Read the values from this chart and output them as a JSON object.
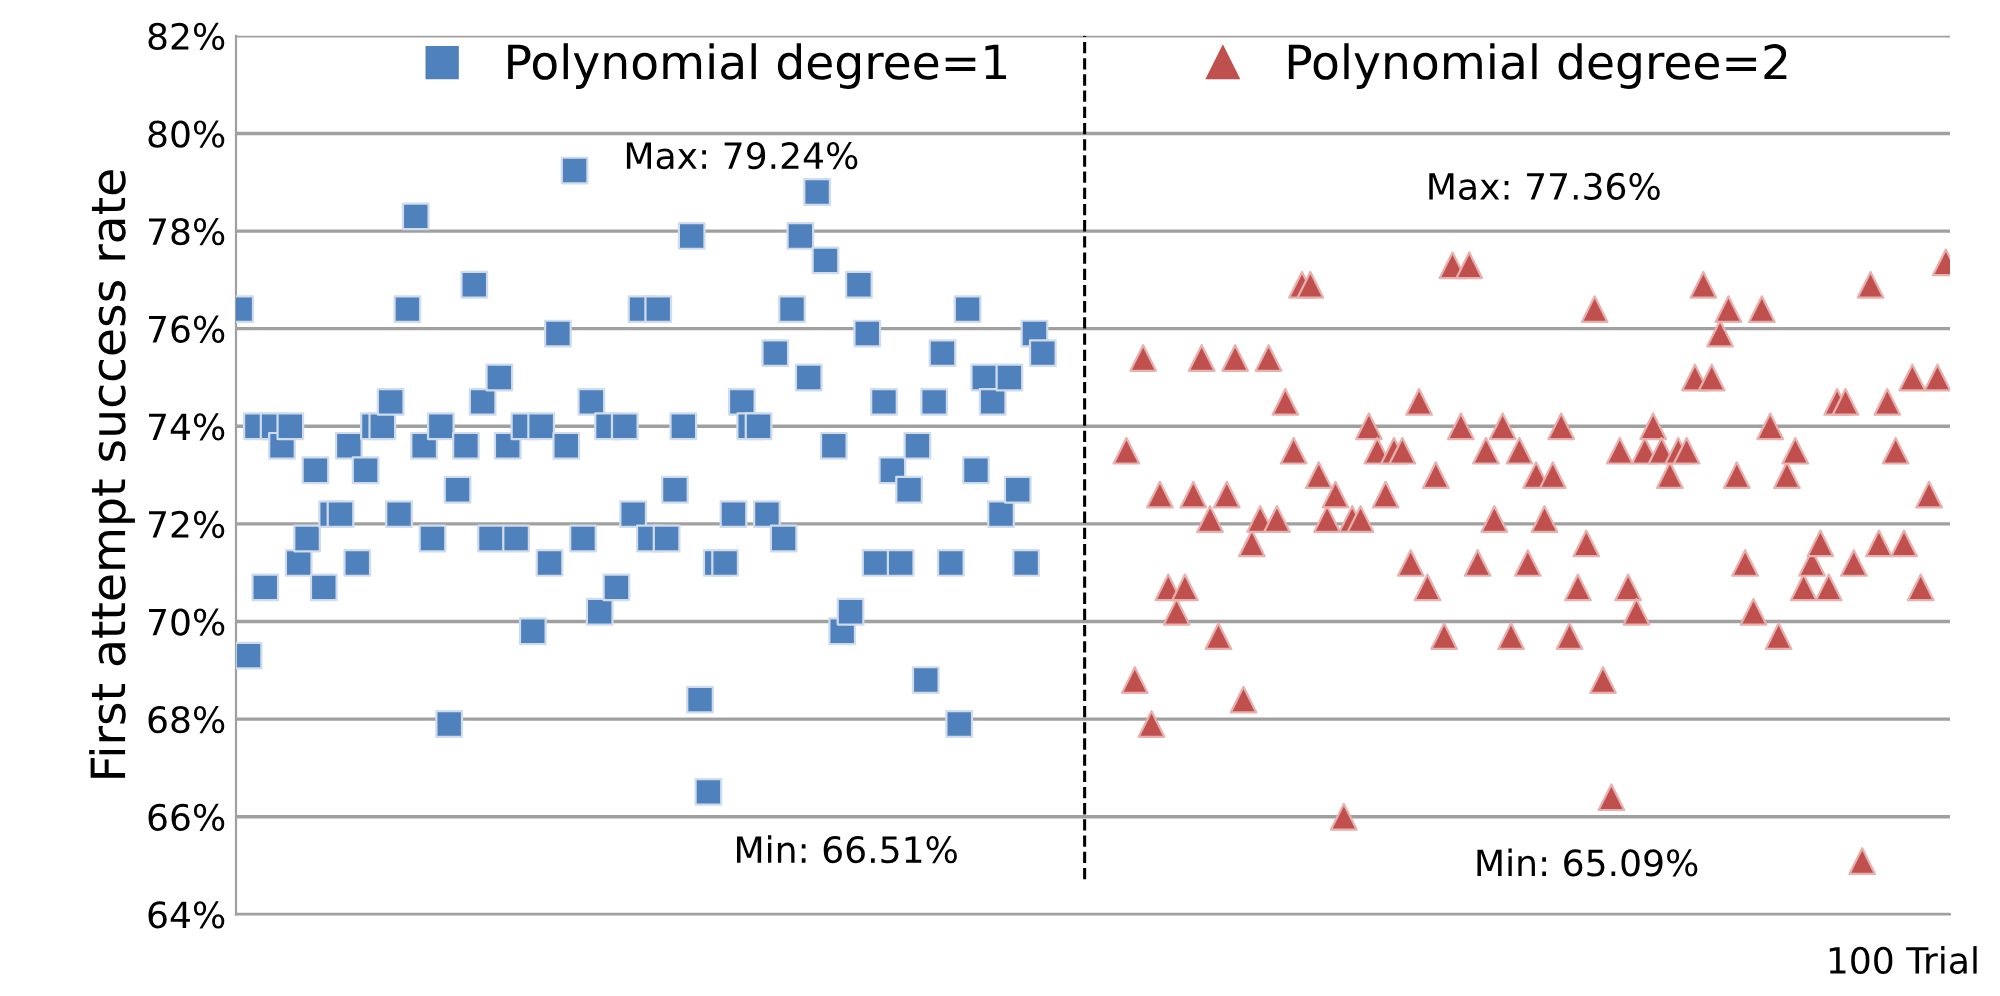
{
  "chart_data": {
    "type": "scatter",
    "ylabel": "First attempt success rate",
    "xlabel": "100 Trial",
    "categories": [
      null,
      null,
      null,
      null,
      null,
      null,
      null,
      null,
      null,
      null,
      null,
      null,
      null,
      null,
      null,
      null,
      null,
      null,
      null,
      null,
      null,
      null,
      null,
      null,
      null,
      null,
      null,
      null,
      null,
      null,
      null,
      null,
      null,
      null,
      null,
      null,
      null,
      null,
      null,
      null,
      null,
      null,
      null,
      null,
      null,
      null,
      null,
      null,
      null,
      null,
      null,
      null,
      null,
      null,
      null,
      null,
      null,
      null,
      null,
      null,
      null,
      null,
      null,
      null,
      null,
      null,
      null,
      null,
      null,
      null,
      null,
      null,
      null,
      null,
      null,
      null,
      null,
      null,
      null,
      null,
      null,
      null,
      null,
      null,
      null,
      null,
      null,
      null,
      null,
      null,
      null,
      null,
      null,
      null,
      null,
      null,
      null,
      null,
      null,
      null,
      null,
      null,
      null,
      null,
      null,
      null,
      null,
      null,
      null,
      null,
      null,
      null,
      null,
      null,
      null,
      null,
      null,
      null,
      null,
      null,
      null,
      null,
      null,
      null,
      null,
      null,
      null,
      null,
      null,
      null,
      null,
      null,
      null,
      null,
      null,
      null,
      null,
      null,
      null,
      null,
      null,
      null,
      null,
      null,
      null,
      null,
      null,
      null,
      null,
      null,
      null,
      null,
      null,
      null,
      null,
      null,
      null,
      null,
      null,
      null,
      null,
      null,
      null,
      null,
      null,
      null,
      null,
      null,
      null,
      null,
      null,
      null,
      null,
      null,
      null,
      null,
      null,
      null,
      null,
      null,
      null,
      null,
      null,
      null,
      null,
      null,
      null,
      null,
      null,
      null,
      null,
      null,
      null,
      null,
      null,
      null,
      null,
      null,
      null,
      null,
      null,
      null,
      null,
      null,
      null
    ],
    "series": [
      {
        "name": "Polynomial degree=1",
        "color": "#4f81bd",
        "marker": "square",
        "values": [
          76.4,
          69.3,
          74.0,
          70.7,
          74.0,
          73.6,
          74.0,
          71.2,
          71.7,
          73.1,
          70.7,
          72.2,
          72.2,
          73.6,
          71.2,
          73.1,
          74.0,
          74.0,
          74.5,
          72.2,
          76.4,
          78.3,
          73.6,
          71.7,
          74.0,
          67.9,
          72.7,
          73.6,
          76.9,
          74.5,
          71.7,
          75.0,
          73.6,
          71.7,
          74.0,
          69.8,
          74.0,
          71.2,
          75.9,
          73.6,
          79.24,
          71.7,
          74.5,
          70.2,
          74.0,
          70.7,
          74.0,
          72.2,
          76.4,
          71.7,
          76.4,
          71.7,
          72.7,
          74.0,
          77.9,
          68.4,
          66.51,
          71.2,
          71.2,
          72.2,
          74.5,
          74.0,
          74.0,
          72.2,
          75.5,
          71.7,
          76.4,
          77.9,
          75.0,
          78.8,
          77.4,
          73.6,
          69.8,
          70.2,
          76.9,
          75.9,
          71.2,
          74.5,
          73.1,
          71.2,
          72.7,
          73.6,
          68.8,
          74.5,
          75.5,
          71.2,
          67.9,
          76.4,
          73.1,
          75.0,
          74.5,
          72.2,
          75.0,
          72.7,
          71.2,
          75.9,
          75.5,
          null,
          null,
          null,
          null,
          null,
          null,
          null,
          null,
          null,
          null,
          null,
          null,
          null,
          null,
          null,
          null,
          null,
          null,
          null,
          null,
          null,
          null,
          null,
          null,
          null,
          null,
          null,
          null,
          null,
          null,
          null,
          null,
          null,
          null,
          null,
          null,
          null,
          null,
          null,
          null,
          null,
          null,
          null,
          null,
          null,
          null,
          null,
          null,
          null,
          null,
          null,
          null,
          null,
          null,
          null,
          null,
          null,
          null,
          null,
          null,
          null,
          null,
          null,
          null,
          null,
          null,
          null,
          null,
          null,
          null,
          null,
          null,
          null,
          null,
          null,
          null,
          null,
          null,
          null,
          null,
          null,
          null,
          null,
          null,
          null,
          null,
          null,
          null,
          null,
          null,
          null,
          null,
          null,
          null,
          null,
          null,
          null,
          null,
          null,
          null,
          null,
          null,
          null,
          null,
          null,
          null,
          null,
          null
        ]
      },
      {
        "name": "Polynomial degree=2",
        "color": "#c0504d",
        "marker": "triangle",
        "values": [
          null,
          null,
          null,
          null,
          null,
          null,
          null,
          null,
          null,
          null,
          null,
          null,
          null,
          null,
          null,
          null,
          null,
          null,
          null,
          null,
          null,
          null,
          null,
          null,
          null,
          null,
          null,
          null,
          null,
          null,
          null,
          null,
          null,
          null,
          null,
          null,
          null,
          null,
          null,
          null,
          null,
          null,
          null,
          null,
          null,
          null,
          null,
          null,
          null,
          null,
          null,
          null,
          null,
          null,
          null,
          null,
          null,
          null,
          null,
          null,
          null,
          null,
          null,
          null,
          null,
          null,
          null,
          null,
          null,
          null,
          null,
          null,
          null,
          null,
          null,
          null,
          null,
          null,
          null,
          null,
          null,
          null,
          null,
          null,
          null,
          null,
          null,
          null,
          null,
          null,
          null,
          null,
          null,
          null,
          null,
          null,
          null,
          null,
          null,
          null,
          null,
          null,
          null,
          null,
          null,
          null,
          73.5,
          68.8,
          75.4,
          67.9,
          72.6,
          70.7,
          70.2,
          70.7,
          72.6,
          75.4,
          72.1,
          69.7,
          72.6,
          75.4,
          68.4,
          71.6,
          72.1,
          75.4,
          72.1,
          74.5,
          73.5,
          76.9,
          76.9,
          73.0,
          72.1,
          72.6,
          66.0,
          72.1,
          72.1,
          74.0,
          73.5,
          72.6,
          73.5,
          73.5,
          71.2,
          74.5,
          70.7,
          73.0,
          69.7,
          77.3,
          74.0,
          77.3,
          71.2,
          73.5,
          72.1,
          74.0,
          69.7,
          73.5,
          71.2,
          73.0,
          72.1,
          73.0,
          74.0,
          69.7,
          70.7,
          71.6,
          76.4,
          68.8,
          66.4,
          73.5,
          70.7,
          70.2,
          73.5,
          74.0,
          73.5,
          73.0,
          73.5,
          73.5,
          75.0,
          76.9,
          75.0,
          75.9,
          76.4,
          73.0,
          71.2,
          70.2,
          76.4,
          74.0,
          69.7,
          73.0,
          73.5,
          70.7,
          71.2,
          71.6,
          70.7,
          74.5,
          74.5,
          71.2,
          65.09,
          76.9,
          71.6,
          74.5,
          73.5,
          71.6,
          75.0,
          70.7,
          72.6,
          75.0,
          77.36
        ]
      }
    ],
    "ylim": [
      64,
      82
    ],
    "yticks": [
      {
        "value": 64,
        "label": "64%"
      },
      {
        "value": 66,
        "label": "66%"
      },
      {
        "value": 68,
        "label": "68%"
      },
      {
        "value": 70,
        "label": "70%"
      },
      {
        "value": 72,
        "label": "72%"
      },
      {
        "value": 74,
        "label": "74%"
      },
      {
        "value": 76,
        "label": "76%"
      },
      {
        "value": 78,
        "label": "78%"
      },
      {
        "value": 80,
        "label": "80%"
      },
      {
        "value": 82,
        "label": "82%"
      }
    ],
    "grid": "y",
    "legend": "top",
    "tick_labels": "y",
    "ref_lines": [
      {
        "axis": "x",
        "line_style": "dashed",
        "color": "#000000"
      }
    ],
    "annotations": [
      "Max: 79.24%",
      "Min: 66.51%",
      "Max: 77.36%",
      "Min: 65.09%"
    ]
  }
}
